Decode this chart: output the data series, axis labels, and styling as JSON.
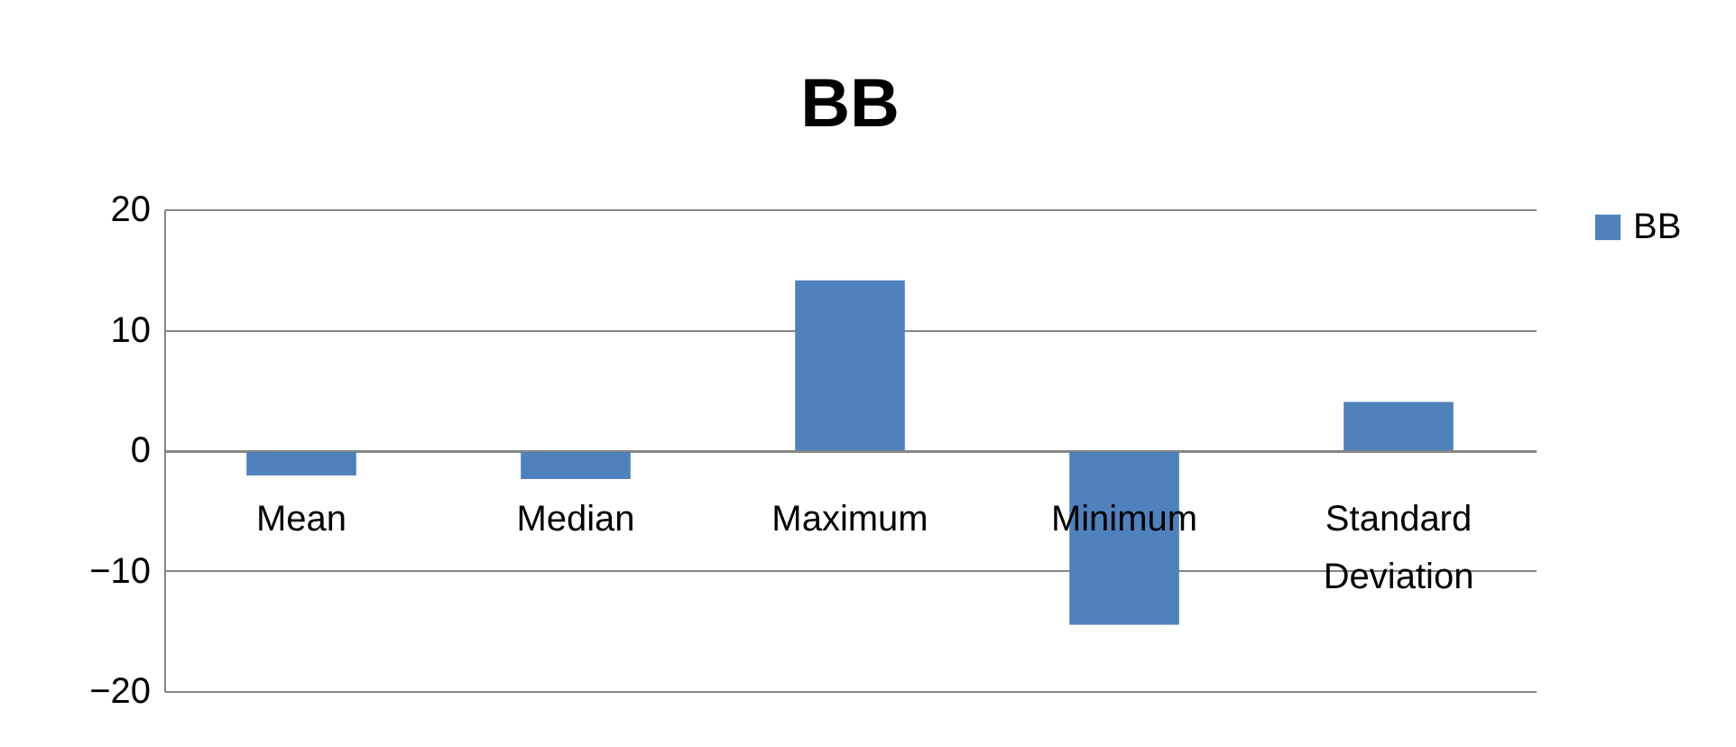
{
  "chart_data": {
    "type": "bar",
    "title": "BB",
    "categories": [
      "Mean",
      "Median",
      "Maximum",
      "Minimum",
      "Standard Deviation"
    ],
    "series": [
      {
        "name": "BB",
        "color": "#4f81bd",
        "values": [
          -2.1,
          -2.4,
          14.1,
          -14.5,
          4.0
        ]
      }
    ],
    "ylim": [
      -20,
      20
    ],
    "yticks": [
      -20,
      -10,
      0,
      10,
      20
    ],
    "grid": "y",
    "legend": "right"
  }
}
